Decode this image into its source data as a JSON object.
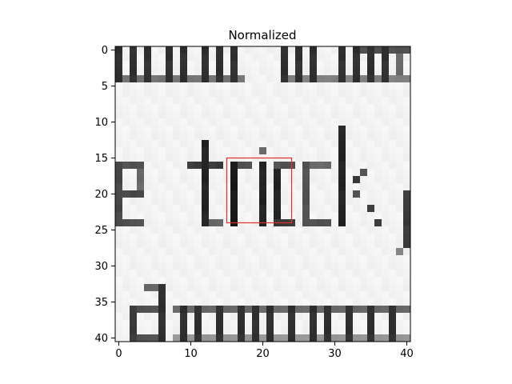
{
  "chart_data": {
    "type": "heatmap",
    "title": "Normalized",
    "xlabel": "",
    "ylabel": "",
    "xlim": [
      -0.5,
      40.5
    ],
    "ylim": [
      40.5,
      -0.5
    ],
    "x_ticks": [
      0,
      10,
      20,
      30,
      40
    ],
    "y_ticks": [
      0,
      5,
      10,
      15,
      20,
      25,
      30,
      35,
      40
    ],
    "grid": false,
    "colormap": "gray",
    "image_rows": 41,
    "image_cols": 41,
    "image_description": "grayscale crop of printed text: partial letters at top, the word 'trick' in the middle, and a lower line of letters at the bottom",
    "highlight_rect": {
      "x": [
        15,
        24
      ],
      "y": [
        15,
        24
      ],
      "color": "#e03030"
    }
  }
}
